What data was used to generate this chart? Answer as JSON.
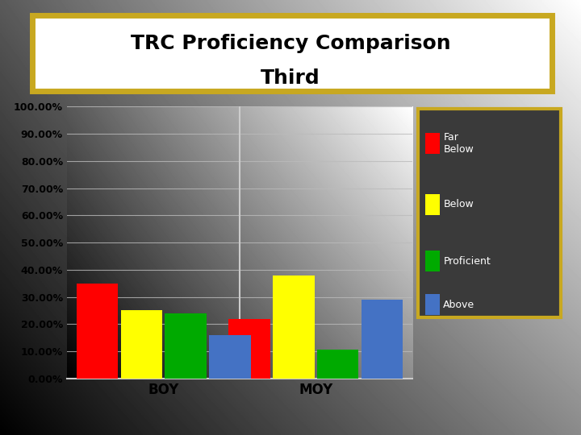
{
  "title_line1": "TRC Proficiency Comparison",
  "title_line2": "Third",
  "categories": [
    "BOY",
    "MOY"
  ],
  "series": [
    {
      "label": "Far\nBelow",
      "color": "#ff0000",
      "values": [
        35.0,
        22.0
      ]
    },
    {
      "label": "Below",
      "color": "#ffff00",
      "values": [
        25.0,
        38.0
      ]
    },
    {
      "label": "Proficient",
      "color": "#00aa00",
      "values": [
        24.0,
        10.5
      ]
    },
    {
      "label": "Above",
      "color": "#4472c4",
      "values": [
        16.0,
        29.0
      ]
    }
  ],
  "ylim": [
    0,
    100
  ],
  "yticks": [
    0,
    10,
    20,
    30,
    40,
    50,
    60,
    70,
    80,
    90,
    100
  ],
  "ytick_labels": [
    "0.00%",
    "10.00%",
    "20.00%",
    "30.00%",
    "40.00%",
    "50.00%",
    "60.00%",
    "70.00%",
    "80.00%",
    "90.00%",
    "100.00%"
  ],
  "title_bg": "#ffffff",
  "title_border": "#c8a820",
  "legend_bg": "#3a3a3a",
  "legend_border": "#c8a820",
  "grid_color": "#bbbbbb",
  "bar_width": 0.12,
  "group_centers": [
    0.28,
    0.72
  ]
}
